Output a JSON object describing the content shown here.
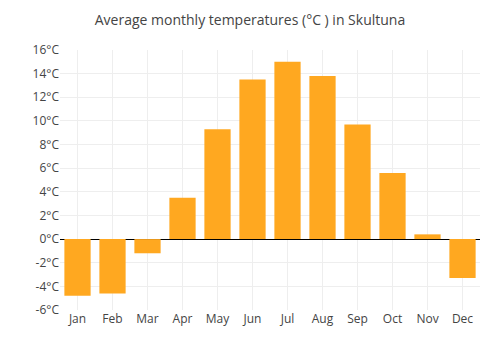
{
  "chart_data": {
    "type": "bar",
    "title": "Average monthly temperatures (°C ) in Skultuna",
    "categories": [
      "Jan",
      "Feb",
      "Mar",
      "Apr",
      "May",
      "Jun",
      "Jul",
      "Aug",
      "Sep",
      "Oct",
      "Nov",
      "Dec"
    ],
    "values": [
      -4.8,
      -4.6,
      -1.2,
      3.5,
      9.3,
      13.5,
      15.0,
      13.8,
      9.7,
      5.6,
      0.4,
      -3.3
    ],
    "color": "#FFA820",
    "ylim": [
      -6,
      16
    ],
    "yticks": [
      {
        "value": -6,
        "label": "-6°C"
      },
      {
        "value": -4,
        "label": "-4°C"
      },
      {
        "value": -2,
        "label": "-2°C"
      },
      {
        "value": 0,
        "label": "0°C"
      },
      {
        "value": 2,
        "label": "2°C"
      },
      {
        "value": 4,
        "label": "4°C"
      },
      {
        "value": 6,
        "label": "6°C"
      },
      {
        "value": 8,
        "label": "8°C"
      },
      {
        "value": 10,
        "label": "10°C"
      },
      {
        "value": 12,
        "label": "12°C"
      },
      {
        "value": 14,
        "label": "14°C"
      },
      {
        "value": 16,
        "label": "16°C"
      }
    ],
    "grid": true
  }
}
